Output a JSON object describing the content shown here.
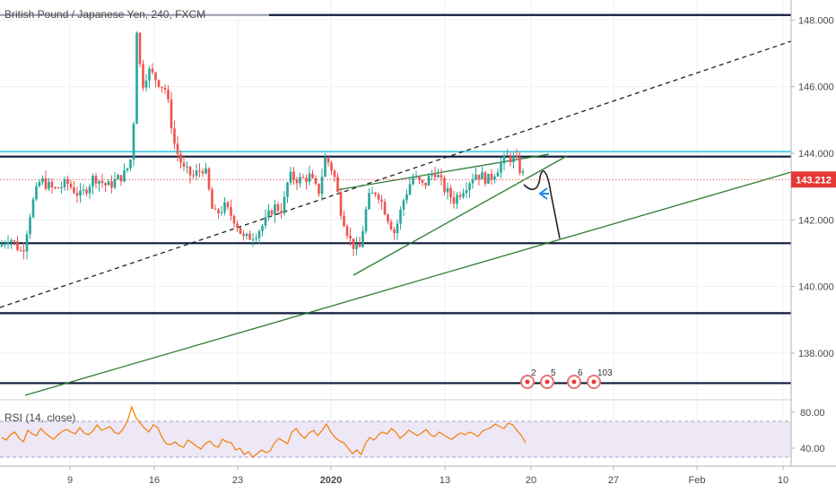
{
  "chart_data": {
    "type": "candlestick",
    "title": "British Pound / Japanese Yen, 240, FXCM",
    "price_axis": {
      "ticks": [
        "148.000",
        "146.000",
        "144.000",
        "142.000",
        "140.000",
        "138.000"
      ],
      "tick_values": [
        148,
        146,
        144,
        142,
        140,
        138
      ],
      "range": [
        136.6,
        148.6
      ]
    },
    "last_price": {
      "label": "143.212",
      "value": 143.212,
      "color": "#e53935"
    },
    "x_axis": {
      "ticks": [
        "9",
        "16",
        "23",
        "2020",
        "30_hidden",
        "13",
        "20",
        "27",
        "Feb",
        "10"
      ]
    },
    "x_tick_labels": [
      "9",
      "16",
      "23",
      "2020",
      "13",
      "20",
      "27",
      "Feb",
      "10"
    ],
    "colors": {
      "up": "#26a69a",
      "down": "#ef5350",
      "rsi": "#f57c00",
      "band": "#ede7f6",
      "trend": "#2e7d32"
    },
    "horizontal_levels": [
      {
        "value": 148.15,
        "color": "#0d1a3a"
      },
      {
        "value": 144.05,
        "color": "#26c6da"
      },
      {
        "value": 143.9,
        "color": "#0d1a3a"
      },
      {
        "value": 141.3,
        "color": "#0d1a3a"
      },
      {
        "value": 139.2,
        "color": "#0d1a3a"
      },
      {
        "value": 137.1,
        "color": "#0d1a3a"
      }
    ],
    "events": [
      "2",
      "5",
      "6",
      "103"
    ],
    "rsi": {
      "label": "RSI (14, close)",
      "ticks": [
        "80.00",
        "40.00"
      ],
      "tick_values": [
        80,
        40
      ],
      "band": [
        30,
        70
      ],
      "range": [
        22,
        92
      ],
      "values": [
        52,
        49,
        55,
        58,
        51,
        47,
        60,
        56,
        54,
        62,
        57,
        53,
        50,
        55,
        59,
        61,
        58,
        56,
        63,
        57,
        55,
        59,
        66,
        60,
        62,
        64,
        58,
        56,
        61,
        70,
        86,
        74,
        68,
        62,
        58,
        66,
        63,
        52,
        45,
        44,
        47,
        43,
        41,
        49,
        46,
        42,
        39,
        45,
        48,
        43,
        41,
        50,
        47,
        46,
        38,
        40,
        33,
        36,
        30,
        34,
        38,
        35,
        37,
        46,
        51,
        48,
        45,
        58,
        62,
        55,
        51,
        57,
        60,
        54,
        60,
        67,
        58,
        52,
        48,
        46,
        40,
        34,
        38,
        33,
        45,
        52,
        49,
        55,
        58,
        56,
        62,
        58,
        51,
        55,
        60,
        57,
        54,
        57,
        61,
        55,
        53,
        58,
        55,
        52,
        50,
        54,
        57,
        55,
        58,
        56,
        53,
        59,
        61,
        63,
        67,
        64,
        62,
        68,
        66,
        60,
        54,
        46
      ]
    }
  }
}
